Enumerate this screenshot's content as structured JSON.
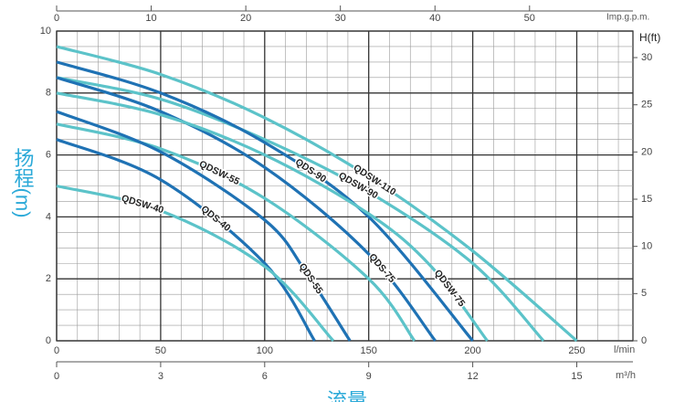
{
  "chart_data": {
    "type": "line",
    "x_title": "流量",
    "x_label": "l/min",
    "xlim": [
      0,
      277
    ],
    "xticks": [
      0,
      50,
      100,
      150,
      200,
      250
    ],
    "x2_label": "m³/h",
    "x2lim": [
      0,
      16.62
    ],
    "x2ticks": [
      0,
      3,
      6,
      9,
      12,
      15
    ],
    "x3_label": "Imp.g.p.m.",
    "x3lim": [
      0,
      60.93
    ],
    "x3ticks": [
      0,
      10,
      20,
      30,
      40,
      50
    ],
    "y_label": "扬程(m)",
    "ylim": [
      0,
      10
    ],
    "yticks": [
      0,
      2,
      4,
      6,
      8,
      10
    ],
    "y2_label": "H(ft)",
    "y2lim": [
      0,
      32.81
    ],
    "y2ticks": [
      0,
      5,
      10,
      15,
      20,
      25,
      30
    ],
    "grid": true,
    "series": [
      {
        "name": "QDSW-110",
        "color": "#5cc3c9",
        "x": [
          0,
          50,
          100,
          150,
          200,
          250
        ],
        "values": [
          9.5,
          8.6,
          7.2,
          5.3,
          2.9,
          0
        ]
      },
      {
        "name": "QDSW-90",
        "color": "#5cc3c9",
        "x": [
          0,
          50,
          100,
          150,
          200,
          234
        ],
        "values": [
          8.5,
          7.8,
          6.5,
          4.8,
          2.5,
          0
        ]
      },
      {
        "name": "QDS-90",
        "color": "#1f72b4",
        "x": [
          0,
          50,
          100,
          150,
          200
        ],
        "values": [
          9.0,
          8.0,
          6.4,
          4.0,
          0
        ]
      },
      {
        "name": "QDS-75",
        "color": "#1f72b4",
        "x": [
          0,
          50,
          100,
          150,
          182
        ],
        "values": [
          8.5,
          7.4,
          5.6,
          2.8,
          0
        ]
      },
      {
        "name": "QDSW-75",
        "color": "#5cc3c9",
        "x": [
          0,
          50,
          100,
          150,
          180,
          207
        ],
        "values": [
          8.0,
          7.3,
          6.0,
          4.1,
          2.4,
          0
        ]
      },
      {
        "name": "QDSW-55",
        "color": "#5cc3c9",
        "x": [
          0,
          50,
          100,
          150,
          172
        ],
        "values": [
          7.0,
          6.2,
          4.6,
          2.0,
          0
        ]
      },
      {
        "name": "QDS-55",
        "color": "#1f72b4",
        "x": [
          0,
          50,
          100,
          120,
          141
        ],
        "values": [
          7.4,
          6.1,
          3.9,
          2.2,
          0
        ]
      },
      {
        "name": "QDS-40",
        "color": "#1f72b4",
        "x": [
          0,
          50,
          100,
          124
        ],
        "values": [
          6.5,
          5.2,
          2.5,
          0
        ]
      },
      {
        "name": "QDSW-40",
        "color": "#5cc3c9",
        "x": [
          0,
          50,
          100,
          133
        ],
        "values": [
          5.0,
          4.2,
          2.4,
          0
        ]
      }
    ]
  }
}
